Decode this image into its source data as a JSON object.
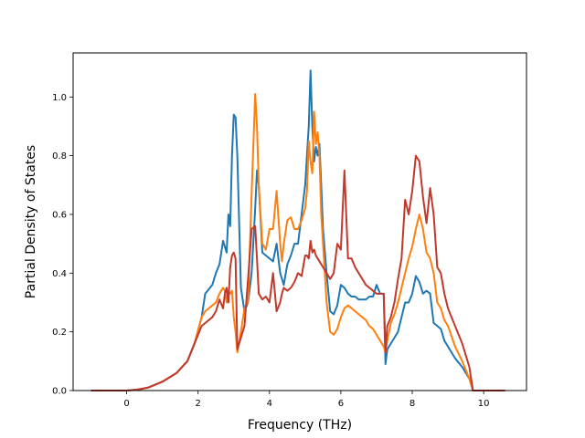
{
  "chart_data": {
    "type": "line",
    "title": "",
    "xlabel": "Frequency (THz)",
    "ylabel": "Partial Density of States",
    "xlim": [
      -1.5,
      11.2
    ],
    "ylim": [
      0.0,
      1.15
    ],
    "xticks": [
      0,
      2,
      4,
      6,
      8,
      10
    ],
    "yticks": [
      0.0,
      0.2,
      0.4,
      0.6,
      0.8,
      1.0
    ],
    "xtick_labels": [
      "0",
      "2",
      "4",
      "6",
      "8",
      "10"
    ],
    "ytick_labels": [
      "0.0",
      "0.2",
      "0.4",
      "0.6",
      "0.8",
      "1.0"
    ],
    "grid": false,
    "legend": "none",
    "series": [
      {
        "color": "#1f77b4",
        "x": [
          -1.0,
          0.0,
          0.3,
          0.6,
          1.0,
          1.4,
          1.7,
          1.9,
          2.1,
          2.2,
          2.4,
          2.5,
          2.6,
          2.7,
          2.75,
          2.8,
          2.85,
          2.9,
          2.95,
          3.0,
          3.05,
          3.1,
          3.2,
          3.3,
          3.4,
          3.5,
          3.6,
          3.65,
          3.7,
          3.8,
          3.9,
          4.0,
          4.1,
          4.2,
          4.3,
          4.35,
          4.4,
          4.5,
          4.6,
          4.7,
          4.8,
          4.9,
          5.0,
          5.05,
          5.1,
          5.15,
          5.2,
          5.25,
          5.3,
          5.35,
          5.4,
          5.45,
          5.5,
          5.6,
          5.7,
          5.8,
          5.9,
          6.0,
          6.1,
          6.2,
          6.3,
          6.4,
          6.5,
          6.6,
          6.7,
          6.8,
          6.9,
          7.0,
          7.1,
          7.2,
          7.25,
          7.3,
          7.4,
          7.5,
          7.6,
          7.7,
          7.8,
          7.9,
          8.0,
          8.1,
          8.2,
          8.3,
          8.4,
          8.5,
          8.6,
          8.7,
          8.8,
          8.9,
          9.0,
          9.2,
          9.4,
          9.6,
          9.7,
          9.8,
          10.0,
          10.6
        ],
        "y": [
          0.0,
          0.0,
          0.003,
          0.01,
          0.03,
          0.06,
          0.1,
          0.16,
          0.25,
          0.33,
          0.36,
          0.4,
          0.43,
          0.51,
          0.49,
          0.47,
          0.6,
          0.56,
          0.8,
          0.94,
          0.93,
          0.8,
          0.35,
          0.27,
          0.3,
          0.4,
          0.62,
          0.75,
          0.7,
          0.47,
          0.46,
          0.45,
          0.44,
          0.5,
          0.4,
          0.38,
          0.36,
          0.43,
          0.46,
          0.5,
          0.5,
          0.6,
          0.7,
          0.8,
          0.9,
          1.09,
          0.9,
          0.78,
          0.83,
          0.8,
          0.84,
          0.7,
          0.55,
          0.4,
          0.27,
          0.26,
          0.29,
          0.36,
          0.35,
          0.33,
          0.32,
          0.32,
          0.31,
          0.31,
          0.31,
          0.32,
          0.32,
          0.36,
          0.33,
          0.33,
          0.09,
          0.14,
          0.16,
          0.18,
          0.2,
          0.25,
          0.3,
          0.3,
          0.33,
          0.39,
          0.37,
          0.33,
          0.34,
          0.33,
          0.23,
          0.22,
          0.21,
          0.17,
          0.15,
          0.11,
          0.08,
          0.04,
          0.0,
          0.0,
          0.0,
          0.0
        ]
      },
      {
        "color": "#ff7f0e",
        "x": [
          -1.0,
          0.0,
          0.3,
          0.6,
          1.0,
          1.4,
          1.7,
          1.9,
          2.1,
          2.2,
          2.4,
          2.5,
          2.6,
          2.7,
          2.75,
          2.8,
          2.85,
          2.9,
          2.95,
          3.0,
          3.05,
          3.1,
          3.2,
          3.3,
          3.4,
          3.5,
          3.6,
          3.65,
          3.7,
          3.8,
          3.9,
          4.0,
          4.1,
          4.2,
          4.3,
          4.35,
          4.4,
          4.5,
          4.6,
          4.7,
          4.8,
          4.9,
          5.0,
          5.05,
          5.1,
          5.15,
          5.2,
          5.25,
          5.3,
          5.35,
          5.4,
          5.45,
          5.5,
          5.6,
          5.7,
          5.8,
          5.9,
          6.0,
          6.1,
          6.2,
          6.3,
          6.4,
          6.5,
          6.6,
          6.7,
          6.8,
          6.9,
          7.0,
          7.1,
          7.2,
          7.25,
          7.3,
          7.4,
          7.5,
          7.6,
          7.7,
          7.8,
          7.9,
          8.0,
          8.1,
          8.2,
          8.3,
          8.4,
          8.5,
          8.6,
          8.7,
          8.8,
          8.9,
          9.0,
          9.2,
          9.4,
          9.6,
          9.7,
          9.8,
          10.0,
          10.6
        ],
        "y": [
          0.0,
          0.0,
          0.003,
          0.01,
          0.03,
          0.06,
          0.1,
          0.16,
          0.25,
          0.27,
          0.29,
          0.3,
          0.33,
          0.35,
          0.34,
          0.3,
          0.34,
          0.33,
          0.34,
          0.25,
          0.2,
          0.13,
          0.2,
          0.28,
          0.3,
          0.67,
          1.01,
          0.9,
          0.7,
          0.5,
          0.48,
          0.55,
          0.55,
          0.68,
          0.5,
          0.44,
          0.5,
          0.58,
          0.59,
          0.55,
          0.55,
          0.58,
          0.62,
          0.68,
          0.85,
          0.78,
          0.74,
          0.95,
          0.84,
          0.88,
          0.8,
          0.6,
          0.5,
          0.3,
          0.2,
          0.19,
          0.21,
          0.25,
          0.28,
          0.29,
          0.28,
          0.27,
          0.26,
          0.25,
          0.24,
          0.22,
          0.21,
          0.19,
          0.17,
          0.15,
          0.13,
          0.17,
          0.23,
          0.26,
          0.3,
          0.35,
          0.4,
          0.45,
          0.49,
          0.55,
          0.6,
          0.55,
          0.47,
          0.45,
          0.4,
          0.3,
          0.28,
          0.24,
          0.22,
          0.15,
          0.1,
          0.04,
          0.0,
          0.0,
          0.0,
          0.0
        ]
      },
      {
        "color": "#c0392b",
        "x": [
          -1.0,
          0.0,
          0.3,
          0.6,
          1.0,
          1.4,
          1.7,
          1.9,
          2.1,
          2.2,
          2.4,
          2.5,
          2.6,
          2.7,
          2.75,
          2.8,
          2.85,
          2.9,
          2.95,
          3.0,
          3.05,
          3.1,
          3.2,
          3.3,
          3.4,
          3.5,
          3.6,
          3.65,
          3.7,
          3.8,
          3.9,
          4.0,
          4.1,
          4.2,
          4.3,
          4.35,
          4.4,
          4.5,
          4.6,
          4.7,
          4.8,
          4.9,
          5.0,
          5.05,
          5.1,
          5.15,
          5.2,
          5.25,
          5.3,
          5.35,
          5.4,
          5.45,
          5.5,
          5.6,
          5.7,
          5.8,
          5.9,
          6.0,
          6.1,
          6.2,
          6.3,
          6.4,
          6.5,
          6.6,
          6.7,
          6.8,
          6.9,
          7.0,
          7.1,
          7.2,
          7.25,
          7.3,
          7.4,
          7.5,
          7.6,
          7.7,
          7.8,
          7.9,
          8.0,
          8.1,
          8.2,
          8.3,
          8.4,
          8.5,
          8.6,
          8.7,
          8.8,
          8.9,
          9.0,
          9.2,
          9.4,
          9.6,
          9.7,
          9.8,
          10.0,
          10.6
        ],
        "y": [
          0.0,
          0.0,
          0.003,
          0.01,
          0.03,
          0.06,
          0.1,
          0.16,
          0.22,
          0.23,
          0.25,
          0.27,
          0.31,
          0.28,
          0.33,
          0.35,
          0.3,
          0.42,
          0.46,
          0.47,
          0.45,
          0.14,
          0.18,
          0.22,
          0.38,
          0.55,
          0.56,
          0.45,
          0.33,
          0.31,
          0.32,
          0.3,
          0.4,
          0.27,
          0.3,
          0.33,
          0.35,
          0.34,
          0.35,
          0.37,
          0.4,
          0.39,
          0.46,
          0.46,
          0.45,
          0.51,
          0.47,
          0.48,
          0.46,
          0.45,
          0.44,
          0.43,
          0.42,
          0.4,
          0.38,
          0.4,
          0.5,
          0.48,
          0.75,
          0.45,
          0.45,
          0.42,
          0.4,
          0.38,
          0.36,
          0.35,
          0.34,
          0.33,
          0.33,
          0.33,
          0.13,
          0.22,
          0.25,
          0.3,
          0.38,
          0.45,
          0.65,
          0.6,
          0.68,
          0.8,
          0.78,
          0.66,
          0.57,
          0.69,
          0.6,
          0.42,
          0.4,
          0.33,
          0.28,
          0.22,
          0.16,
          0.08,
          0.0,
          0.0,
          0.0,
          0.0
        ]
      }
    ]
  }
}
